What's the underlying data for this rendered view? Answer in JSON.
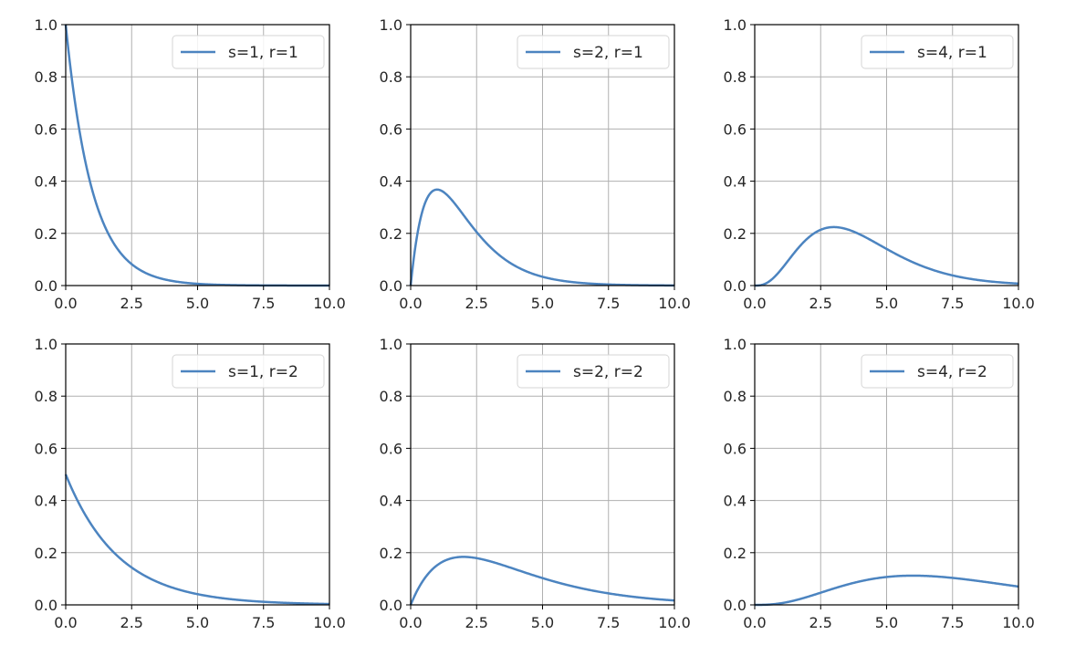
{
  "chart_data": [
    {
      "type": "line",
      "family": "gamma",
      "shape": 1,
      "scale": 1,
      "legend": "s=1, r=1",
      "xlim": [
        0,
        10
      ],
      "ylim": [
        0,
        1
      ],
      "xticks": [
        "0.0",
        "2.5",
        "5.0",
        "7.5",
        "10.0"
      ],
      "yticks": [
        "0.0",
        "0.2",
        "0.4",
        "0.6",
        "0.8",
        "1.0"
      ],
      "grid": true,
      "legend_position": "top-right",
      "color": "#4c84c0"
    },
    {
      "type": "line",
      "family": "gamma",
      "shape": 2,
      "scale": 1,
      "legend": "s=2, r=1",
      "xlim": [
        0,
        10
      ],
      "ylim": [
        0,
        1
      ],
      "xticks": [
        "0.0",
        "2.5",
        "5.0",
        "7.5",
        "10.0"
      ],
      "yticks": [
        "0.0",
        "0.2",
        "0.4",
        "0.6",
        "0.8",
        "1.0"
      ],
      "grid": true,
      "legend_position": "top-right",
      "color": "#4c84c0"
    },
    {
      "type": "line",
      "family": "gamma",
      "shape": 4,
      "scale": 1,
      "legend": "s=4, r=1",
      "xlim": [
        0,
        10
      ],
      "ylim": [
        0,
        1
      ],
      "xticks": [
        "0.0",
        "2.5",
        "5.0",
        "7.5",
        "10.0"
      ],
      "yticks": [
        "0.0",
        "0.2",
        "0.4",
        "0.6",
        "0.8",
        "1.0"
      ],
      "grid": true,
      "legend_position": "top-right",
      "color": "#4c84c0"
    },
    {
      "type": "line",
      "family": "gamma",
      "shape": 1,
      "scale": 2,
      "legend": "s=1, r=2",
      "xlim": [
        0,
        10
      ],
      "ylim": [
        0,
        1
      ],
      "xticks": [
        "0.0",
        "2.5",
        "5.0",
        "7.5",
        "10.0"
      ],
      "yticks": [
        "0.0",
        "0.2",
        "0.4",
        "0.6",
        "0.8",
        "1.0"
      ],
      "grid": true,
      "legend_position": "top-right",
      "color": "#4c84c0"
    },
    {
      "type": "line",
      "family": "gamma",
      "shape": 2,
      "scale": 2,
      "legend": "s=2, r=2",
      "xlim": [
        0,
        10
      ],
      "ylim": [
        0,
        1
      ],
      "xticks": [
        "0.0",
        "2.5",
        "5.0",
        "7.5",
        "10.0"
      ],
      "yticks": [
        "0.0",
        "0.2",
        "0.4",
        "0.6",
        "0.8",
        "1.0"
      ],
      "grid": true,
      "legend_position": "top-right",
      "color": "#4c84c0"
    },
    {
      "type": "line",
      "family": "gamma",
      "shape": 4,
      "scale": 2,
      "legend": "s=4, r=2",
      "xlim": [
        0,
        10
      ],
      "ylim": [
        0,
        1
      ],
      "xticks": [
        "0.0",
        "2.5",
        "5.0",
        "7.5",
        "10.0"
      ],
      "yticks": [
        "0.0",
        "0.2",
        "0.4",
        "0.6",
        "0.8",
        "1.0"
      ],
      "grid": true,
      "legend_position": "top-right",
      "color": "#4c84c0"
    }
  ]
}
